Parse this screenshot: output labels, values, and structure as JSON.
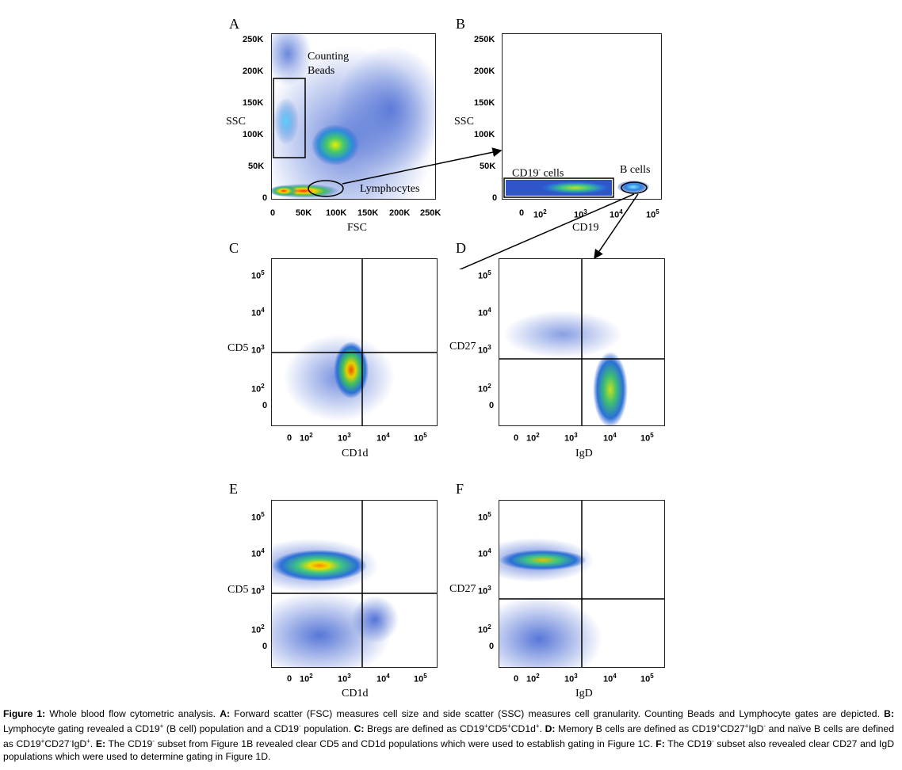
{
  "panels": {
    "A": {
      "letter": "A",
      "ylabel": "SSC",
      "xlabel": "FSC",
      "yticks": [
        "250K",
        "200K",
        "150K",
        "100K",
        "50K",
        "0"
      ],
      "xticks": [
        "0",
        "50K",
        "100K",
        "150K",
        "200K",
        "250K"
      ],
      "gates": [
        "Counting Beads",
        "Lymphocytes"
      ]
    },
    "B": {
      "letter": "B",
      "ylabel": "SSC",
      "xlabel": "CD19",
      "yticks": [
        "250K",
        "200K",
        "150K",
        "100K",
        "50K",
        "0"
      ],
      "xticks": [
        "0",
        "10",
        "10",
        "10",
        "10"
      ],
      "xtick_exp": [
        "",
        "2",
        "3",
        "4",
        "5"
      ],
      "gates": [
        "CD19",
        "cells",
        "B cells"
      ]
    },
    "C": {
      "letter": "C",
      "ylabel": "CD5",
      "xlabel": "CD1d"
    },
    "D": {
      "letter": "D",
      "ylabel": "CD27",
      "xlabel": "IgD"
    },
    "E": {
      "letter": "E",
      "ylabel": "CD5",
      "xlabel": "CD1d"
    },
    "F": {
      "letter": "F",
      "ylabel": "CD27",
      "xlabel": "IgD"
    }
  },
  "log_axis": {
    "base": "10",
    "y_exps": [
      "5",
      "4",
      "3",
      "2"
    ],
    "zero": "0",
    "x_exps": [
      "2",
      "3",
      "4",
      "5"
    ]
  },
  "caption": {
    "label": "Figure 1:",
    "intro": " Whole blood flow cytometric analysis. ",
    "A_label": "A:",
    "A_text": " Forward scatter (FSC) measures cell size and side scatter (SSC) measures cell granularity. Counting Beads and Lymphocyte gates are depicted. ",
    "B_label": "B:",
    "B_text1": " Lymphocyte gating revealed a CD19",
    "B_sup1": "+",
    "B_text2": " (B cell) population and a CD19",
    "B_sup2": "-",
    "B_text3": " population. ",
    "C_label": "C:",
    "C_text1": " Bregs are defined as CD19",
    "C_sup1": "+",
    "C_text2": "CD5",
    "C_sup2": "+",
    "C_text3": "CD1d",
    "C_sup3": "+",
    "C_text4": ". ",
    "D_label": "D:",
    "D_text1": " Memory B cells are defined as CD19",
    "D_sup1": "+",
    "D_text2": "CD27",
    "D_sup2": "+",
    "D_text3": "IgD",
    "D_sup3": "-",
    "D_text4": " and naïve B cells are defined as CD19",
    "D_sup4": "+",
    "D_text5": "CD27",
    "D_sup5": "-",
    "D_text6": "IgD",
    "D_sup6": "+",
    "D_text7": ". ",
    "E_label": "E:",
    "E_text1": " The CD19",
    "E_sup1": "-",
    "E_text2": " subset from Figure 1B revealed clear CD5 and CD1d populations which were used to establish gating in Figure 1C. ",
    "F_label": "F:",
    "F_text1": " The CD19",
    "F_sup1": "-",
    "F_text2": " subset also revealed clear CD27 and IgD populations which were used to determine gating in Figure 1D."
  }
}
